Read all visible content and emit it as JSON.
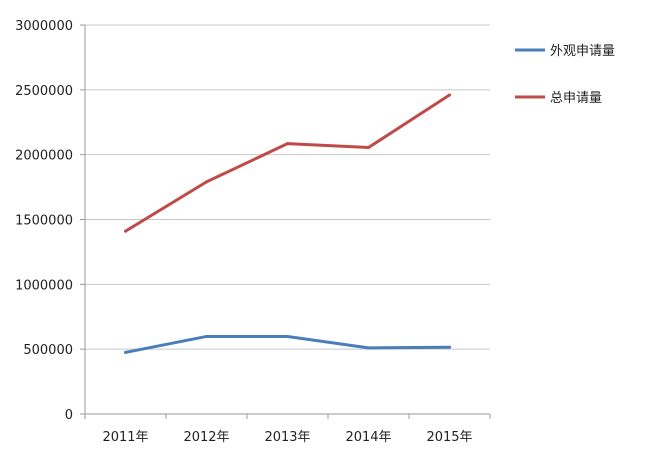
{
  "chart_data": {
    "type": "line",
    "categories": [
      "2011年",
      "2012年",
      "2013年",
      "2014年",
      "2015年"
    ],
    "series": [
      {
        "name": "外观申请量",
        "values": [
          475000,
          598000,
          598000,
          510000,
          515000
        ],
        "color": "#4a7ebb"
      },
      {
        "name": "总申请量",
        "values": [
          1410000,
          1790000,
          2085000,
          2055000,
          2460000
        ],
        "color": "#be4b48"
      }
    ],
    "ylim": [
      0,
      3000000
    ],
    "yticks": [
      0,
      500000,
      1000000,
      1500000,
      2000000,
      2500000,
      3000000
    ],
    "ytick_labels": [
      "0",
      "500000",
      "1000000",
      "1500000",
      "2000000",
      "2500000",
      "3000000"
    ],
    "grid": true,
    "legend_position": "right",
    "title": "",
    "xlabel": "",
    "ylabel": ""
  }
}
